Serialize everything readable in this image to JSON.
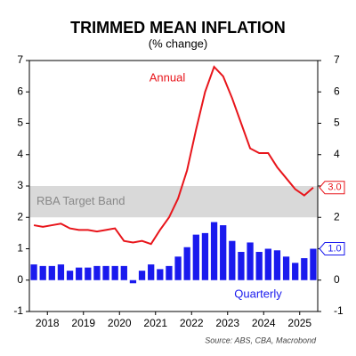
{
  "chart_data": {
    "type": "bar-line",
    "title": "TRIMMED MEAN INFLATION",
    "subtitle": "(% change)",
    "source": "Source: ABS, CBA, Macrobond",
    "x": [
      2017.625,
      2017.875,
      2018.125,
      2018.375,
      2018.625,
      2018.875,
      2019.125,
      2019.375,
      2019.625,
      2019.875,
      2020.125,
      2020.375,
      2020.625,
      2020.875,
      2021.125,
      2021.375,
      2021.625,
      2021.875,
      2022.125,
      2022.375,
      2022.625,
      2022.875,
      2023.125,
      2023.375,
      2023.625,
      2023.875,
      2024.125,
      2024.375,
      2024.625,
      2024.875,
      2025.125,
      2025.375
    ],
    "series": [
      {
        "name": "Annual",
        "kind": "line",
        "color": "#e8151b",
        "end_label": "3.0",
        "values": [
          1.75,
          1.7,
          1.75,
          1.8,
          1.65,
          1.6,
          1.6,
          1.55,
          1.6,
          1.65,
          1.25,
          1.2,
          1.25,
          1.15,
          1.6,
          2.0,
          2.6,
          3.5,
          4.8,
          6.0,
          6.8,
          6.5,
          5.8,
          5.0,
          4.2,
          4.05,
          4.05,
          3.6,
          3.25,
          2.9,
          2.7,
          2.95
        ]
      },
      {
        "name": "Quarterly",
        "kind": "bar",
        "color": "#1a1aee",
        "end_label": "1.0",
        "values": [
          0.5,
          0.45,
          0.45,
          0.5,
          0.3,
          0.4,
          0.4,
          0.45,
          0.45,
          0.45,
          0.45,
          -0.1,
          0.3,
          0.5,
          0.35,
          0.45,
          0.75,
          1.05,
          1.45,
          1.5,
          1.85,
          1.75,
          1.25,
          0.9,
          1.2,
          0.9,
          1.0,
          0.95,
          0.75,
          0.55,
          0.7,
          1.0
        ]
      }
    ],
    "band": {
      "label": "RBA Target Band",
      "range": [
        2,
        3
      ],
      "color": "#d9d9d9"
    },
    "xlim": [
      2017.5,
      2025.5
    ],
    "xticks": [
      2018,
      2019,
      2020,
      2021,
      2022,
      2023,
      2024,
      2025
    ],
    "ylim": [
      -1,
      7
    ],
    "yticks": [
      -1,
      0,
      1,
      2,
      3,
      4,
      5,
      6,
      7
    ]
  }
}
